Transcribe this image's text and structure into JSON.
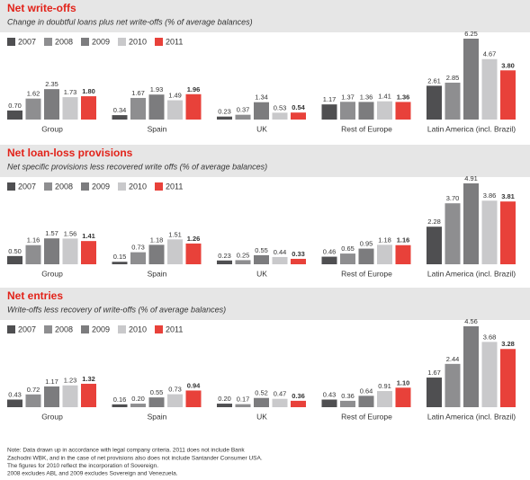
{
  "chart_data": [
    {
      "type": "bar",
      "title": "Net write-offs",
      "subtitle": "Change in doubtful loans plus net write-offs (% of average balances)",
      "categories": [
        "Group",
        "Spain",
        "UK",
        "Rest of Europe",
        "Latin America (incl. Brazil)"
      ],
      "series": [
        {
          "name": "2007",
          "color": "#4f4f51",
          "values": [
            0.7,
            0.34,
            0.23,
            1.17,
            2.61
          ],
          "value_labels": [
            "0.70",
            "0.34",
            "0.23",
            "1.17",
            "2.61"
          ]
        },
        {
          "name": "2008",
          "color": "#8e8e90",
          "values": [
            1.62,
            1.67,
            0.37,
            1.37,
            2.85
          ],
          "value_labels": [
            "1.62",
            "1.67",
            "0.37",
            "1.37",
            "2.85"
          ]
        },
        {
          "name": "2009",
          "color": "#7c7c7e",
          "values": [
            2.35,
            1.93,
            1.34,
            1.36,
            6.25
          ],
          "value_labels": [
            "2.35",
            "1.93",
            "1.34",
            "1.36",
            "6.25"
          ]
        },
        {
          "name": "2010",
          "color": "#c9c9cb",
          "values": [
            1.73,
            1.49,
            0.53,
            1.41,
            4.67
          ],
          "value_labels": [
            "1.73",
            "1.49",
            "0.53",
            "1.41",
            "4.67"
          ]
        },
        {
          "name": "2011",
          "color": "#e8413a",
          "values": [
            1.8,
            1.96,
            0.54,
            1.36,
            3.8
          ],
          "value_labels": [
            "1.80",
            "1.96",
            "0.54",
            "1.36",
            "3.80"
          ]
        }
      ]
    },
    {
      "type": "bar",
      "title": "Net loan-loss provisions",
      "subtitle": "Net specific provisions less recovered write offs (% of average balances)",
      "categories": [
        "Group",
        "Spain",
        "UK",
        "Rest of Europe",
        "Latin America (incl. Brazil)"
      ],
      "series": [
        {
          "name": "2007",
          "color": "#4f4f51",
          "values": [
            0.5,
            0.15,
            0.23,
            0.46,
            2.28
          ],
          "value_labels": [
            "0.50",
            "0.15",
            "0.23",
            "0.46",
            "2.28"
          ]
        },
        {
          "name": "2008",
          "color": "#8e8e90",
          "values": [
            1.16,
            0.73,
            0.25,
            0.65,
            3.7
          ],
          "value_labels": [
            "1.16",
            "0.73",
            "0.25",
            "0.65",
            "3.70"
          ]
        },
        {
          "name": "2009",
          "color": "#7c7c7e",
          "values": [
            1.57,
            1.18,
            0.55,
            0.95,
            4.91
          ],
          "value_labels": [
            "1.57",
            "1.18",
            "0.55",
            "0.95",
            "4.91"
          ]
        },
        {
          "name": "2010",
          "color": "#c9c9cb",
          "values": [
            1.56,
            1.51,
            0.44,
            1.18,
            3.86
          ],
          "value_labels": [
            "1.56",
            "1.51",
            "0.44",
            "1.18",
            "3.86"
          ]
        },
        {
          "name": "2011",
          "color": "#e8413a",
          "values": [
            1.41,
            1.26,
            0.33,
            1.16,
            3.81
          ],
          "value_labels": [
            "1.41",
            "1.26",
            "0.33",
            "1.16",
            "3.81"
          ]
        }
      ]
    },
    {
      "type": "bar",
      "title": "Net entries",
      "subtitle": "Write-offs less recovery of write-offs (% of average balances)",
      "categories": [
        "Group",
        "Spain",
        "UK",
        "Rest of Europe",
        "Latin America (incl. Brazil)"
      ],
      "series": [
        {
          "name": "2007",
          "color": "#4f4f51",
          "values": [
            0.43,
            0.16,
            0.2,
            0.43,
            1.67
          ],
          "value_labels": [
            "0.43",
            "0.16",
            "0.20",
            "0.43",
            "1.67"
          ]
        },
        {
          "name": "2008",
          "color": "#8e8e90",
          "values": [
            0.72,
            0.2,
            0.17,
            0.36,
            2.44
          ],
          "value_labels": [
            "0.72",
            "0.20",
            "0.17",
            "0.36",
            "2.44"
          ]
        },
        {
          "name": "2009",
          "color": "#7c7c7e",
          "values": [
            1.17,
            0.55,
            0.52,
            0.64,
            4.56
          ],
          "value_labels": [
            "1.17",
            "0.55",
            "0.52",
            "0.64",
            "4.56"
          ]
        },
        {
          "name": "2010",
          "color": "#c9c9cb",
          "values": [
            1.23,
            0.73,
            0.47,
            0.91,
            3.68
          ],
          "value_labels": [
            "1.23",
            "0.73",
            "0.47",
            "0.91",
            "3.68"
          ]
        },
        {
          "name": "2011",
          "color": "#e8413a",
          "values": [
            1.32,
            0.94,
            0.36,
            1.1,
            3.28
          ],
          "value_labels": [
            "1.32",
            "0.94",
            "0.36",
            "1.10",
            "3.28"
          ]
        }
      ]
    }
  ],
  "note": [
    "Note: Data drawn up in accordance with legal company criteria. 2011 does not include Bank",
    "Zachodni WBK, and in the case of net provisions also does not include Santander Consumer USA.",
    "The figures for 2010 reflect the incorporation of Sovereign.",
    "2008 excludes ABL and 2009 excludes Sovereign and Venezuela."
  ]
}
